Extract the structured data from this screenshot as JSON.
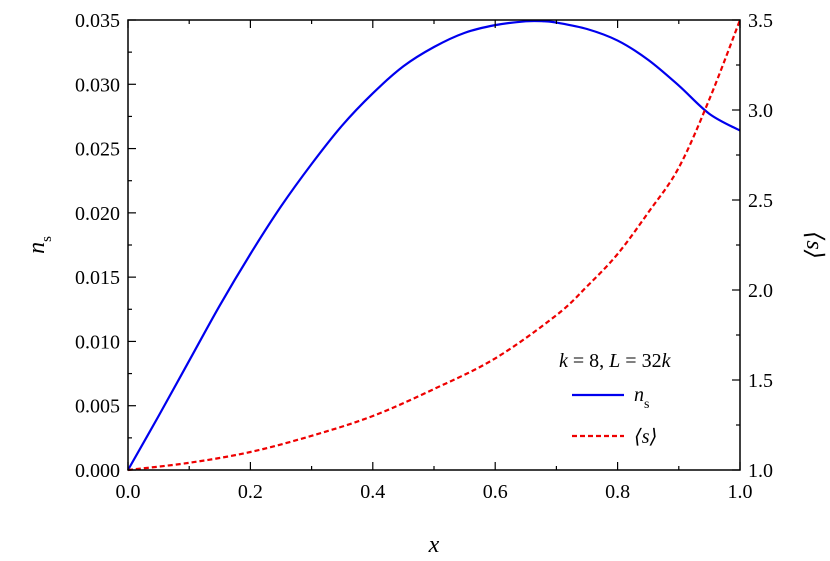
{
  "chart_data": {
    "type": "line",
    "title": "",
    "xlabel": "x",
    "ylabel_left": "n",
    "ylabel_left_subscript": "s",
    "ylabel_right": "⟨s⟩",
    "xlim": [
      0.0,
      1.0
    ],
    "ylim_left": [
      0.0,
      0.035
    ],
    "ylim_right": [
      1.0,
      3.5
    ],
    "x_ticks": [
      "0.0",
      "0.2",
      "0.4",
      "0.6",
      "0.8",
      "1.0"
    ],
    "y_left_ticks": [
      "0.000",
      "0.005",
      "0.010",
      "0.015",
      "0.020",
      "0.025",
      "0.030",
      "0.035"
    ],
    "y_right_ticks": [
      "1.0",
      "1.5",
      "2.0",
      "2.5",
      "3.0",
      "3.5"
    ],
    "grid": false,
    "legend_position": "bottom-right",
    "legend_title": {
      "k_sym": "k",
      "k_rest": " = 8, ",
      "L_sym": "L",
      "L_rest": " = 32",
      "L_k_sym": "k"
    },
    "series": [
      {
        "name": "n",
        "name_subscript": "s",
        "axis": "left",
        "color": "#0000ee",
        "style": "solid",
        "x": [
          0.0,
          0.05,
          0.1,
          0.15,
          0.2,
          0.25,
          0.3,
          0.35,
          0.4,
          0.45,
          0.5,
          0.55,
          0.6,
          0.65,
          0.68,
          0.7,
          0.75,
          0.8,
          0.85,
          0.9,
          0.95,
          1.0
        ],
        "values": [
          0.0,
          0.0042,
          0.0085,
          0.0128,
          0.0168,
          0.0205,
          0.0238,
          0.0268,
          0.0293,
          0.0314,
          0.0329,
          0.034,
          0.0346,
          0.0349,
          0.0349,
          0.0348,
          0.0343,
          0.0334,
          0.0319,
          0.0299,
          0.0277,
          0.0264
        ]
      },
      {
        "name": "⟨s⟩",
        "axis": "right",
        "color": "#ee0000",
        "style": "dashed",
        "x": [
          0.0,
          0.1,
          0.2,
          0.3,
          0.4,
          0.5,
          0.6,
          0.7,
          0.75,
          0.8,
          0.85,
          0.9,
          0.95,
          1.0
        ],
        "values": [
          1.0,
          1.04,
          1.1,
          1.19,
          1.3,
          1.45,
          1.62,
          1.86,
          2.02,
          2.2,
          2.43,
          2.68,
          3.06,
          3.5
        ]
      }
    ]
  }
}
